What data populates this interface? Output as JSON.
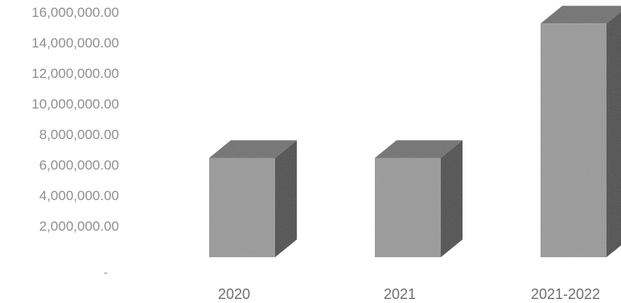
{
  "chart_data": {
    "type": "bar",
    "title": "",
    "xlabel": "",
    "ylabel": "",
    "categories": [
      "2020",
      "2021",
      "2021-2022"
    ],
    "values": [
      6500000,
      6500000,
      15300000
    ],
    "ylim": [
      0,
      16000000
    ],
    "y_ticks": [
      {
        "value": 0,
        "label": "-"
      },
      {
        "value": 2000000,
        "label": "2,000,000.00"
      },
      {
        "value": 4000000,
        "label": "4,000,000.00"
      },
      {
        "value": 6000000,
        "label": "6,000,000.00"
      },
      {
        "value": 8000000,
        "label": "8,000,000.00"
      },
      {
        "value": 10000000,
        "label": "10,000,000.00"
      },
      {
        "value": 12000000,
        "label": "12,000,000.00"
      },
      {
        "value": 14000000,
        "label": "14,000,000.00"
      },
      {
        "value": 16000000,
        "label": "16,000,000.00"
      }
    ],
    "grid": false,
    "legend": "none",
    "colors": {
      "bar_front": "#9a9a9a",
      "bar_top": "#707070",
      "bar_side": "#4a4a4a",
      "tick_text": "#8f8f8f",
      "category_text": "#6f6f6f"
    }
  }
}
